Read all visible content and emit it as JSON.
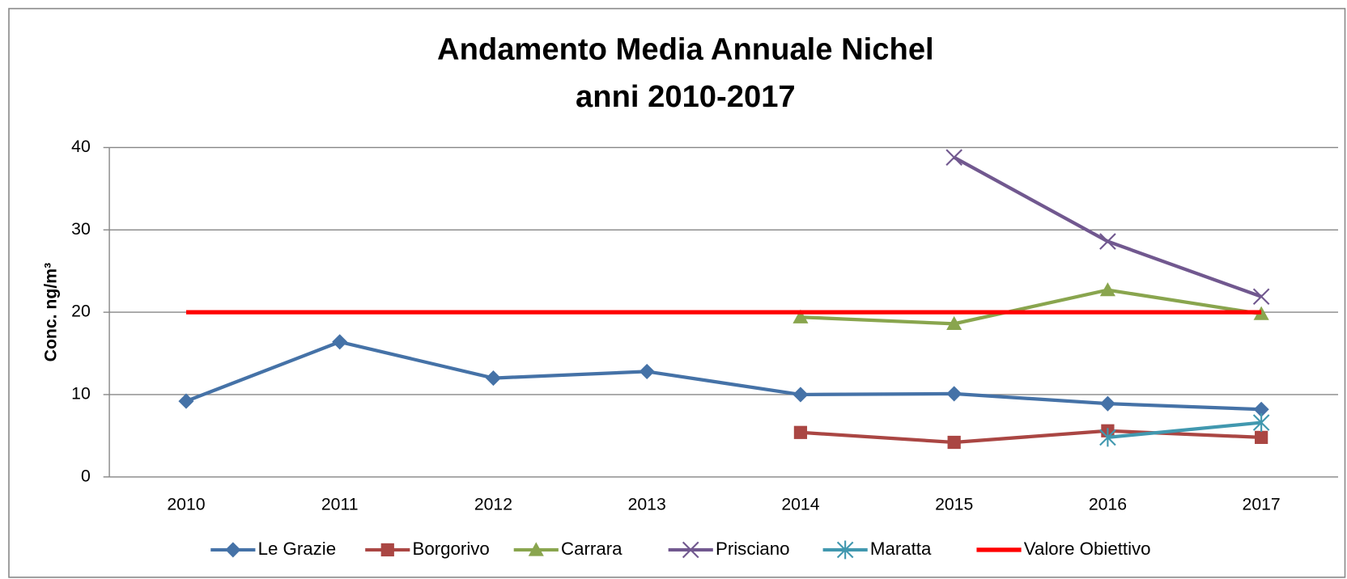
{
  "chart_data": {
    "type": "line",
    "title": [
      "Andamento Media Annuale Nichel",
      "anni 2010-2017"
    ],
    "y_label": "Conc.  ng/m³",
    "categories": [
      "2010",
      "2011",
      "2012",
      "2013",
      "2014",
      "2015",
      "2016",
      "2017"
    ],
    "ylim": [
      0,
      40
    ],
    "yticks": [
      0,
      10,
      20,
      30,
      40
    ],
    "grid": true,
    "legend": "bottom",
    "series": [
      {
        "name": "Le Grazie",
        "color": "#4572a7",
        "marker": "diamond",
        "values": [
          9.2,
          16.4,
          12.0,
          12.8,
          10.0,
          10.1,
          8.9,
          8.2
        ]
      },
      {
        "name": "Borgorivo",
        "color": "#aa4643",
        "marker": "square",
        "values": [
          null,
          null,
          null,
          null,
          5.4,
          4.2,
          5.6,
          4.8
        ]
      },
      {
        "name": "Carrara",
        "color": "#89a54e",
        "marker": "triangle",
        "values": [
          null,
          null,
          null,
          null,
          19.4,
          18.6,
          22.7,
          19.8
        ]
      },
      {
        "name": "Prisciano",
        "color": "#71588f",
        "marker": "x",
        "values": [
          null,
          null,
          null,
          null,
          null,
          38.8,
          28.6,
          21.9
        ]
      },
      {
        "name": "Maratta",
        "color": "#4198af",
        "marker": "asterisk",
        "values": [
          null,
          null,
          null,
          null,
          null,
          null,
          4.8,
          6.6
        ]
      },
      {
        "name": "Valore Obiettivo",
        "color": "#ff0000",
        "marker": "none",
        "values": [
          20,
          20,
          20,
          20,
          20,
          20,
          20,
          20
        ]
      }
    ]
  }
}
